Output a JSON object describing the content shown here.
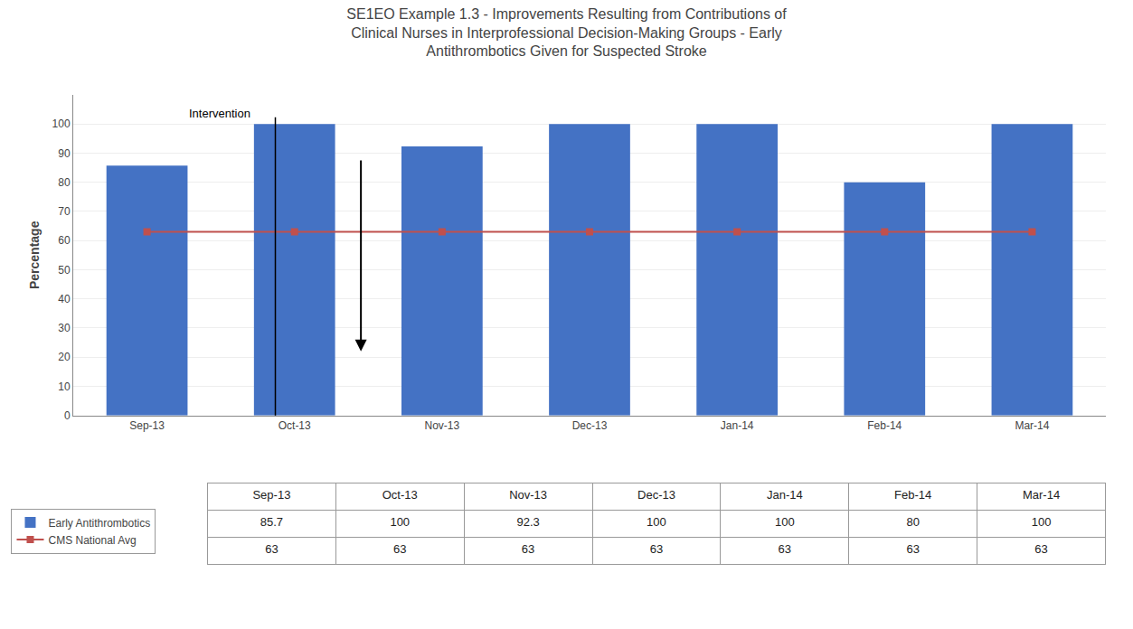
{
  "chart_data": {
    "type": "bar",
    "title": "SE1EO Example 1.3 - Improvements Resulting from Contributions of\nClinical Nurses in Interprofessional Decision-Making Groups - Early\nAntithrombotics Given for Suspected Stroke",
    "categories": [
      "Sep-13",
      "Oct-13",
      "Nov-13",
      "Dec-13",
      "Jan-14",
      "Feb-14",
      "Mar-14"
    ],
    "series": [
      {
        "name": "Early Antithrombotics",
        "type": "bar",
        "color": "#4472C4",
        "values": [
          85.7,
          100,
          92.3,
          100,
          100,
          80,
          100
        ]
      },
      {
        "name": "CMS National Avg",
        "type": "line",
        "color": "#C0504D",
        "marker": "square",
        "values": [
          63,
          63,
          63,
          63,
          63,
          63,
          63
        ]
      }
    ],
    "ylabel": "Percentage",
    "ylim": [
      0,
      110
    ],
    "yticks": [
      0,
      10,
      20,
      30,
      40,
      50,
      60,
      70,
      80,
      90,
      100
    ],
    "grid": true,
    "legend": "bottom left",
    "annotations": [
      {
        "text": "Intervention"
      }
    ]
  }
}
